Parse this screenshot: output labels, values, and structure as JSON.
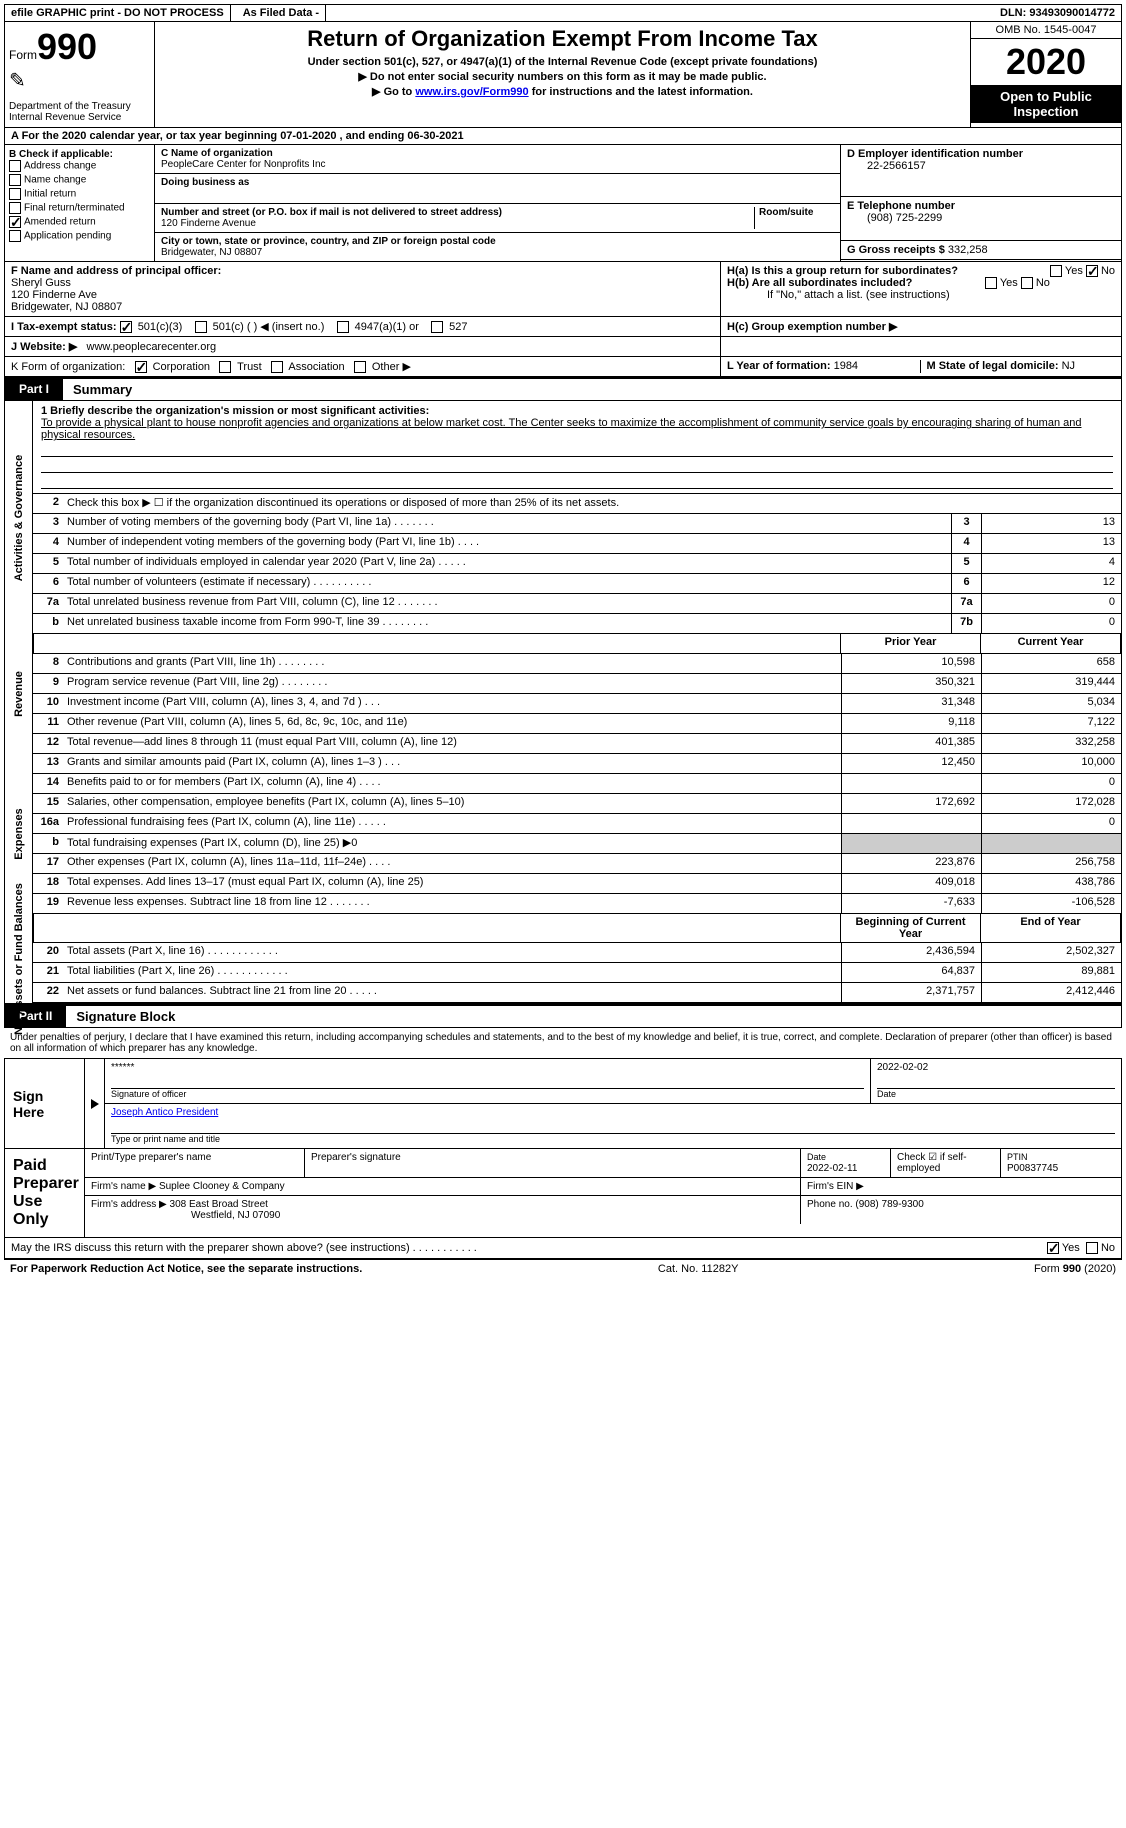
{
  "topbar": {
    "efile": "efile GRAPHIC print - DO NOT PROCESS",
    "asfiled": "As Filed Data -",
    "dln": "DLN: 93493090014772"
  },
  "header": {
    "form_word": "Form",
    "form_num": "990",
    "dept": "Department of the Treasury\nInternal Revenue Service",
    "title": "Return of Organization Exempt From Income Tax",
    "sub1": "Under section 501(c), 527, or 4947(a)(1) of the Internal Revenue Code (except private foundations)",
    "sub2": "▶ Do not enter social security numbers on this form as it may be made public.",
    "sub3_pre": "▶ Go to ",
    "sub3_link": "www.irs.gov/Form990",
    "sub3_post": " for instructions and the latest information.",
    "omb": "OMB No. 1545-0047",
    "year": "2020",
    "open": "Open to Public Inspection"
  },
  "rowA": "A   For the 2020 calendar year, or tax year beginning 07-01-2020   , and ending 06-30-2021",
  "B": {
    "hdr": "B Check if applicable:",
    "items": [
      "Address change",
      "Name change",
      "Initial return",
      "Final return/terminated",
      "Amended return",
      "Application pending"
    ],
    "checked_idx": 4
  },
  "C": {
    "name_lbl": "C Name of organization",
    "name": "PeopleCare Center for Nonprofits Inc",
    "dba_lbl": "Doing business as",
    "addr_lbl": "Number and street (or P.O. box if mail is not delivered to street address)",
    "room_lbl": "Room/suite",
    "addr": "120 Finderne Avenue",
    "city_lbl": "City or town, state or province, country, and ZIP or foreign postal code",
    "city": "Bridgewater, NJ  08807",
    "F_lbl": "F  Name and address of principal officer:",
    "F_name": "Sheryl Guss",
    "F_addr1": "120 Finderne Ave",
    "F_addr2": "Bridgewater, NJ  08807"
  },
  "D": {
    "ein_lbl": "D Employer identification number",
    "ein": "22-2566157",
    "tel_lbl": "E Telephone number",
    "tel": "(908) 725-2299",
    "gross_lbl": "G Gross receipts $",
    "gross": "332,258"
  },
  "H": {
    "a": "H(a)  Is this a group return for subordinates?",
    "b": "H(b)  Are all subordinates included?",
    "b_note": "If \"No,\" attach a list. (see instructions)",
    "c": "H(c)  Group exemption number ▶",
    "yes": "Yes",
    "no": "No"
  },
  "I": {
    "lbl": "I   Tax-exempt status:",
    "opts": [
      "501(c)(3)",
      "501(c) (   ) ◀ (insert no.)",
      "4947(a)(1) or",
      "527"
    ]
  },
  "J": {
    "lbl": "J   Website: ▶",
    "val": "www.peoplecarecenter.org"
  },
  "K": {
    "lbl": "K Form of organization:",
    "opts": [
      "Corporation",
      "Trust",
      "Association",
      "Other ▶"
    ]
  },
  "L": {
    "lbl": "L Year of formation:",
    "val": "1984"
  },
  "M": {
    "lbl": "M State of legal domicile:",
    "val": "NJ"
  },
  "part1": {
    "tag": "Part I",
    "title": "Summary"
  },
  "mission": {
    "line1": "1 Briefly describe the organization's mission or most significant activities:",
    "text": "To provide a physical plant to house nonprofit agencies and organizations at below market cost. The Center seeks to maximize the accomplishment of community service goals by encouraging sharing of human and physical resources."
  },
  "gov": {
    "label": "Activities & Governance",
    "line2": "Check this box ▶ ☐ if the organization discontinued its operations or disposed of more than 25% of its net assets.",
    "rows": [
      {
        "n": "3",
        "d": "Number of voting members of the governing body (Part VI, line 1a)  .    .    .    .    .    .    .",
        "b": "3",
        "v": "13"
      },
      {
        "n": "4",
        "d": "Number of independent voting members of the governing body (Part VI, line 1b)   .    .    .    .",
        "b": "4",
        "v": "13"
      },
      {
        "n": "5",
        "d": "Total number of individuals employed in calendar year 2020 (Part V, line 2a)   .    .    .    .    .",
        "b": "5",
        "v": "4"
      },
      {
        "n": "6",
        "d": "Total number of volunteers (estimate if necessary)   .    .    .    .    .    .    .    .    .    .",
        "b": "6",
        "v": "12"
      },
      {
        "n": "7a",
        "d": "Total unrelated business revenue from Part VIII, column (C), line 12   .    .    .    .    .    .    .",
        "b": "7a",
        "v": "0"
      },
      {
        "n": "b",
        "d": "Net unrelated business taxable income from Form 990-T, line 39   .    .    .    .    .    .    .    .",
        "b": "7b",
        "v": "0"
      }
    ]
  },
  "rev": {
    "label": "Revenue",
    "hdr": {
      "py": "Prior Year",
      "cy": "Current Year"
    },
    "rows": [
      {
        "n": "8",
        "d": "Contributions and grants (Part VIII, line 1h)   .    .    .    .    .    .    .    .",
        "py": "10,598",
        "cy": "658"
      },
      {
        "n": "9",
        "d": "Program service revenue (Part VIII, line 2g)   .    .    .    .    .    .    .    .",
        "py": "350,321",
        "cy": "319,444"
      },
      {
        "n": "10",
        "d": "Investment income (Part VIII, column (A), lines 3, 4, and 7d )   .    .    .",
        "py": "31,348",
        "cy": "5,034"
      },
      {
        "n": "11",
        "d": "Other revenue (Part VIII, column (A), lines 5, 6d, 8c, 9c, 10c, and 11e)",
        "py": "9,118",
        "cy": "7,122"
      },
      {
        "n": "12",
        "d": "Total revenue—add lines 8 through 11 (must equal Part VIII, column (A), line 12)",
        "py": "401,385",
        "cy": "332,258"
      }
    ]
  },
  "exp": {
    "label": "Expenses",
    "rows": [
      {
        "n": "13",
        "d": "Grants and similar amounts paid (Part IX, column (A), lines 1–3 )   .    .    .",
        "py": "12,450",
        "cy": "10,000"
      },
      {
        "n": "14",
        "d": "Benefits paid to or for members (Part IX, column (A), line 4)   .    .    .    .",
        "py": "",
        "cy": "0"
      },
      {
        "n": "15",
        "d": "Salaries, other compensation, employee benefits (Part IX, column (A), lines 5–10)",
        "py": "172,692",
        "cy": "172,028"
      },
      {
        "n": "16a",
        "d": "Professional fundraising fees (Part IX, column (A), line 11e)   .    .    .    .    .",
        "py": "",
        "cy": "0"
      },
      {
        "n": "b",
        "d": "Total fundraising expenses (Part IX, column (D), line 25) ▶0",
        "py": "shade",
        "cy": "shade"
      },
      {
        "n": "17",
        "d": "Other expenses (Part IX, column (A), lines 11a–11d, 11f–24e)   .    .    .    .",
        "py": "223,876",
        "cy": "256,758"
      },
      {
        "n": "18",
        "d": "Total expenses. Add lines 13–17 (must equal Part IX, column (A), line 25)",
        "py": "409,018",
        "cy": "438,786"
      },
      {
        "n": "19",
        "d": "Revenue less expenses. Subtract line 18 from line 12   .    .    .    .    .    .    .",
        "py": "-7,633",
        "cy": "-106,528"
      }
    ]
  },
  "net": {
    "label": "Net Assets or Fund Balances",
    "hdr": {
      "py": "Beginning of Current Year",
      "cy": "End of Year"
    },
    "rows": [
      {
        "n": "20",
        "d": "Total assets (Part X, line 16)   .    .    .    .    .    .    .    .    .    .    .    .",
        "py": "2,436,594",
        "cy": "2,502,327"
      },
      {
        "n": "21",
        "d": "Total liabilities (Part X, line 26)   .    .    .    .    .    .    .    .    .    .    .    .",
        "py": "64,837",
        "cy": "89,881"
      },
      {
        "n": "22",
        "d": "Net assets or fund balances. Subtract line 21 from line 20   .    .    .    .    .",
        "py": "2,371,757",
        "cy": "2,412,446"
      }
    ]
  },
  "part2": {
    "tag": "Part II",
    "title": "Signature Block"
  },
  "perjury": "Under penalties of perjury, I declare that I have examined this return, including accompanying schedules and statements, and to the best of my knowledge and belief, it is true, correct, and complete. Declaration of preparer (other than officer) is based on all information of which preparer has any knowledge.",
  "sign": {
    "here": "Sign Here",
    "stars": "******",
    "sig_lbl": "Signature of officer",
    "date": "2022-02-02",
    "date_lbl": "Date",
    "name": "Joseph Antico  President",
    "name_lbl": "Type or print name and title"
  },
  "paid": {
    "lbl": "Paid Preparer Use Only",
    "r1": {
      "c1": "Print/Type preparer's name",
      "c2": "Preparer's signature",
      "c3_lbl": "Date",
      "c3": "2022-02-11",
      "c4": "Check ☑ if self-employed",
      "c5_lbl": "PTIN",
      "c5": "P00837745"
    },
    "r2": {
      "c1": "Firm's name      ▶",
      "c1v": "Suplee Clooney & Company",
      "c2": "Firm's EIN ▶"
    },
    "r3": {
      "c1": "Firm's address ▶",
      "c1v": "308 East Broad Street",
      "c1v2": "Westfield, NJ  07090",
      "c2": "Phone no.",
      "c2v": "(908) 789-9300"
    }
  },
  "discuss": "May the IRS discuss this return with the preparer shown above? (see instructions)   .    .    .    .    .    .    .    .    .    .    .",
  "footer": {
    "left": "For Paperwork Reduction Act Notice, see the separate instructions.",
    "mid": "Cat. No. 11282Y",
    "right_pre": "Form ",
    "right_bold": "990",
    "right_post": " (2020)"
  }
}
